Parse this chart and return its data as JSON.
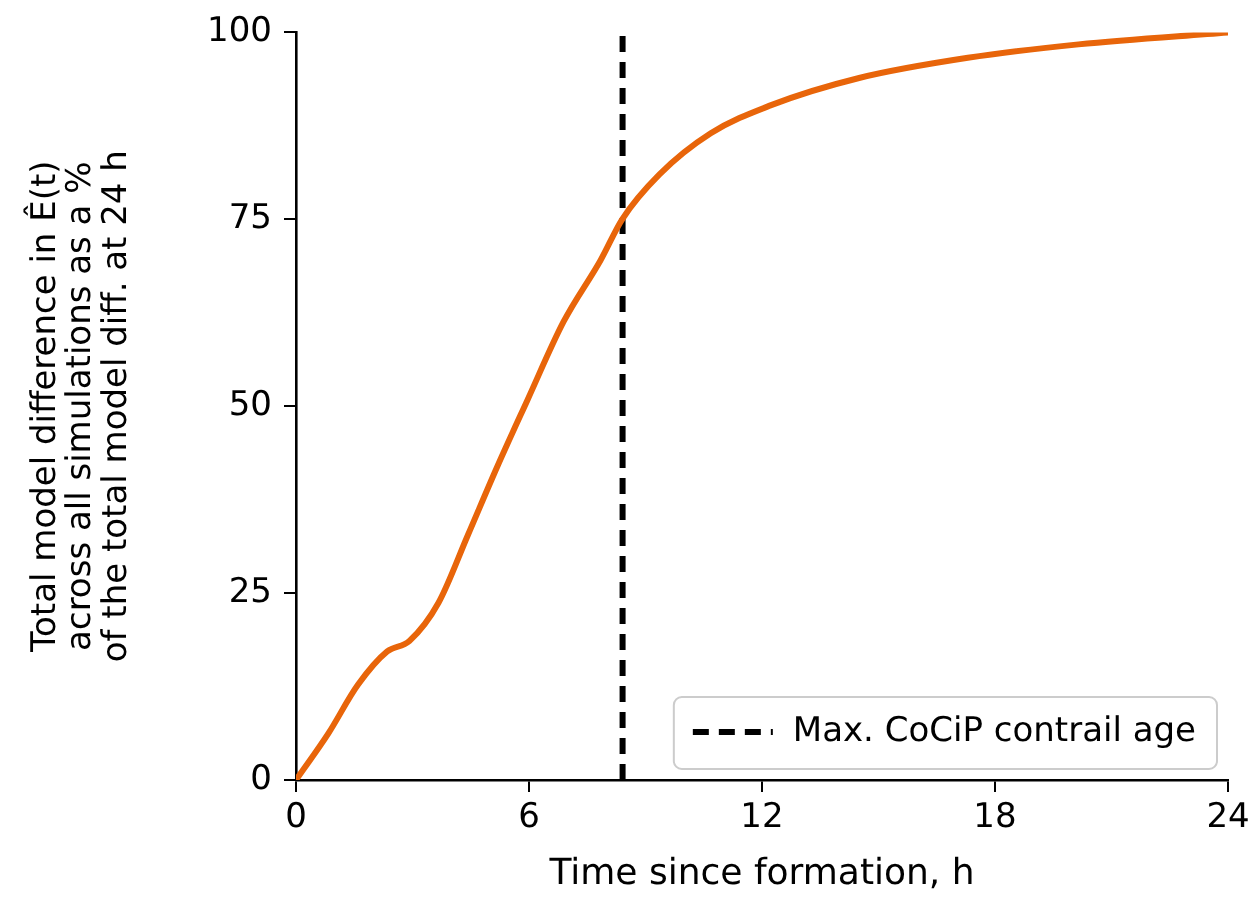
{
  "chart_data": {
    "type": "line",
    "xlabel": "Time since formation, h",
    "ylabel": "Total model difference in Ê(t)\nacross all simulations as a %\nof the total model diff. at 24 h",
    "x": [
      0,
      0.83,
      1.59,
      2.35,
      2.92,
      3.67,
      4.43,
      5.19,
      5.95,
      6.89,
      7.84,
      8.4,
      9.36,
      10.68,
      12.2,
      14.5,
      17.3,
      20.15,
      24
    ],
    "series": [
      {
        "color": "#e8650a",
        "values": [
          0,
          6.2,
          12.7,
          17.2,
          18.6,
          23.7,
          32.8,
          42,
          50.7,
          61.3,
          69.5,
          75,
          81,
          86.5,
          90.2,
          93.9,
          96.6,
          98.4,
          100
        ]
      }
    ],
    "xlim": [
      0,
      24
    ],
    "xticks": [
      0,
      6,
      12,
      18,
      24
    ],
    "ylim": [
      0,
      100
    ],
    "yticks": [
      0,
      25,
      50,
      75,
      100
    ],
    "ref_lines": [
      {
        "axis": "x",
        "value": 8.41,
        "label": "Max. CoCiP contrail age",
        "color": "#000000",
        "line_style": "dashed"
      }
    ],
    "grid": false,
    "legend": "bottom right",
    "marker": "none",
    "line_style": "solid"
  }
}
